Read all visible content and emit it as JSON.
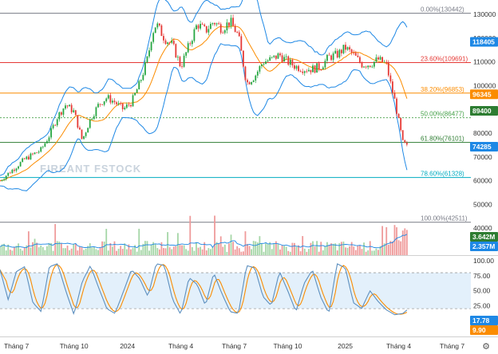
{
  "chart_data": [
    {
      "type": "candlestick",
      "y_range": [
        46000,
        132000
      ],
      "y_ticks": [
        "130000",
        "120000",
        "110000",
        "100000",
        "90000",
        "80000",
        "70000",
        "60000",
        "50000",
        "40000"
      ],
      "x_range": [
        0,
        100
      ],
      "x_ticks": [
        {
          "label": "Tháng 7",
          "x": 4
        },
        {
          "label": "Tháng 10",
          "x": 18
        },
        {
          "label": "2024",
          "x": 31
        },
        {
          "label": "Tháng 4",
          "x": 44
        },
        {
          "label": "Tháng 7",
          "x": 57
        },
        {
          "label": "Tháng 10",
          "x": 70
        },
        {
          "label": "2025",
          "x": 84
        },
        {
          "label": "Tháng 4",
          "x": 97
        },
        {
          "label": "Tháng 7",
          "x": 110
        }
      ],
      "fibonacci": [
        {
          "label": "0.00%(130442)",
          "value": 130442,
          "color": "#787b86"
        },
        {
          "label": "23.60%(109691)",
          "value": 109691,
          "color": "#e53935"
        },
        {
          "label": "38.20%(96853)",
          "value": 96853,
          "color": "#fb8c00"
        },
        {
          "label": "50.00%(86477)",
          "value": 86477,
          "color": "#43a047"
        },
        {
          "label": "61.80%(76101)",
          "value": 76101,
          "color": "#2e7d32"
        },
        {
          "label": "78.60%(61328)",
          "value": 61328,
          "color": "#00acc1"
        },
        {
          "label": "100.00%(42511)",
          "value": 42511,
          "color": "#787b86"
        }
      ],
      "price_tags": [
        {
          "label": "118405",
          "value": 118405,
          "color": "#1e88e5"
        },
        {
          "label": "96345",
          "value": 96345,
          "color": "#fb8c00"
        },
        {
          "label": "89400",
          "value": 89400,
          "color": "#2e7d32"
        },
        {
          "label": "74285",
          "value": 74285,
          "color": "#1e88e5"
        }
      ],
      "close_path": [
        [
          0,
          60000
        ],
        [
          2,
          63000
        ],
        [
          4,
          66000
        ],
        [
          6,
          69000
        ],
        [
          8,
          71000
        ],
        [
          10,
          73000
        ],
        [
          12,
          79000
        ],
        [
          14,
          87000
        ],
        [
          16,
          92000
        ],
        [
          18,
          89000
        ],
        [
          20,
          77000
        ],
        [
          22,
          86000
        ],
        [
          24,
          92000
        ],
        [
          26,
          95000
        ],
        [
          28,
          93000
        ],
        [
          30,
          90000
        ],
        [
          32,
          93000
        ],
        [
          34,
          101000
        ],
        [
          36,
          112000
        ],
        [
          37,
          122000
        ],
        [
          38,
          126000
        ],
        [
          40,
          120000
        ],
        [
          42,
          117000
        ],
        [
          44,
          108000
        ],
        [
          46,
          117000
        ],
        [
          48,
          126000
        ],
        [
          50,
          123000
        ],
        [
          52,
          127000
        ],
        [
          54,
          124000
        ],
        [
          56,
          127000
        ],
        [
          58,
          121000
        ],
        [
          60,
          101000
        ],
        [
          62,
          104000
        ],
        [
          64,
          110000
        ],
        [
          66,
          111000
        ],
        [
          68,
          113000
        ],
        [
          70,
          110000
        ],
        [
          72,
          108000
        ],
        [
          74,
          107000
        ],
        [
          76,
          107000
        ],
        [
          78,
          108000
        ],
        [
          80,
          112000
        ],
        [
          82,
          113000
        ],
        [
          84,
          116000
        ],
        [
          86,
          113000
        ],
        [
          88,
          109000
        ],
        [
          90,
          109000
        ],
        [
          92,
          111000
        ],
        [
          94,
          109000
        ],
        [
          95,
          101000
        ],
        [
          96,
          94000
        ],
        [
          97,
          85000
        ],
        [
          98,
          76000
        ],
        [
          99,
          74300
        ]
      ]
    },
    {
      "type": "bar",
      "name_tags": [
        {
          "label": "3.642M",
          "color": "#2e7d32"
        },
        {
          "label": "2.357M",
          "color": "#1e88e5"
        }
      ]
    },
    {
      "type": "line",
      "y_range": [
        0,
        100
      ],
      "y_ticks": [
        "100.00",
        "75.00",
        "50.00",
        "25.00"
      ],
      "bands": [
        20,
        80
      ],
      "value_tags": [
        {
          "label": "17.78",
          "value": 17.78,
          "color": "#1e88e5"
        },
        {
          "label": "9.90",
          "value": 9.9,
          "color": "#fb8c00"
        }
      ],
      "k_path": [
        [
          0,
          85
        ],
        [
          2,
          35
        ],
        [
          4,
          82
        ],
        [
          6,
          90
        ],
        [
          8,
          30
        ],
        [
          10,
          15
        ],
        [
          12,
          90
        ],
        [
          14,
          95
        ],
        [
          16,
          50
        ],
        [
          18,
          10
        ],
        [
          20,
          65
        ],
        [
          22,
          92
        ],
        [
          24,
          55
        ],
        [
          26,
          20
        ],
        [
          28,
          12
        ],
        [
          30,
          48
        ],
        [
          32,
          85
        ],
        [
          34,
          70
        ],
        [
          36,
          40
        ],
        [
          38,
          95
        ],
        [
          40,
          92
        ],
        [
          42,
          35
        ],
        [
          44,
          10
        ],
        [
          46,
          72
        ],
        [
          48,
          60
        ],
        [
          50,
          25
        ],
        [
          52,
          80
        ],
        [
          54,
          45
        ],
        [
          56,
          15
        ],
        [
          58,
          12
        ],
        [
          60,
          92
        ],
        [
          62,
          88
        ],
        [
          64,
          40
        ],
        [
          66,
          25
        ],
        [
          68,
          82
        ],
        [
          70,
          50
        ],
        [
          72,
          15
        ],
        [
          74,
          62
        ],
        [
          76,
          85
        ],
        [
          78,
          40
        ],
        [
          80,
          12
        ],
        [
          82,
          95
        ],
        [
          84,
          88
        ],
        [
          86,
          30
        ],
        [
          88,
          20
        ],
        [
          90,
          50
        ],
        [
          92,
          32
        ],
        [
          94,
          18
        ],
        [
          96,
          10
        ],
        [
          98,
          12
        ],
        [
          99,
          17.78
        ]
      ]
    }
  ],
  "watermark": "FIREANT FSTOCK"
}
